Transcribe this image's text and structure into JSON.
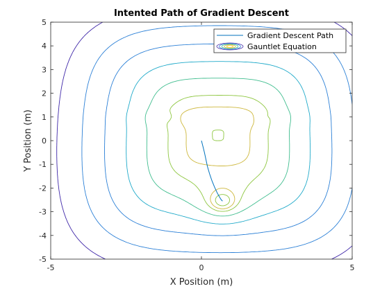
{
  "chart_data": {
    "type": "line",
    "title": "Intented Path of Gradient Descent",
    "xlabel": "X Position (m)",
    "ylabel": "Y Position (m)",
    "xlim": [
      -5,
      5
    ],
    "ylim": [
      -5,
      5
    ],
    "xticks": [
      "-5",
      "0",
      "5"
    ],
    "yticks": [
      "-5",
      "-4",
      "-3",
      "-2",
      "-1",
      "0",
      "1",
      "2",
      "3",
      "4",
      "5"
    ],
    "grid": false,
    "legend_position": "top-right",
    "legend": [
      "Gradient Descent Path",
      "Gauntlet Equation"
    ],
    "series": [
      {
        "name": "Gradient Descent Path",
        "type": "line",
        "color": "#0072bd",
        "x": [
          0.0,
          0.05,
          0.1,
          0.15,
          0.2,
          0.27,
          0.35,
          0.43,
          0.52,
          0.6,
          0.66,
          0.7
        ],
        "y": [
          0.0,
          -0.25,
          -0.5,
          -0.8,
          -1.1,
          -1.4,
          -1.7,
          -1.95,
          -2.2,
          -2.38,
          -2.5,
          -2.55
        ]
      },
      {
        "name": "Gauntlet Equation",
        "type": "contour",
        "colormap": [
          "#3e26a8",
          "#2a7fd6",
          "#1ea9c9",
          "#3fbd8e",
          "#8dc63f",
          "#cdb73b",
          "#fcce2e"
        ],
        "minimum_location": [
          0.7,
          -2.55
        ]
      }
    ]
  },
  "colors": {
    "path": "#0072bd",
    "axis": "#262626"
  }
}
